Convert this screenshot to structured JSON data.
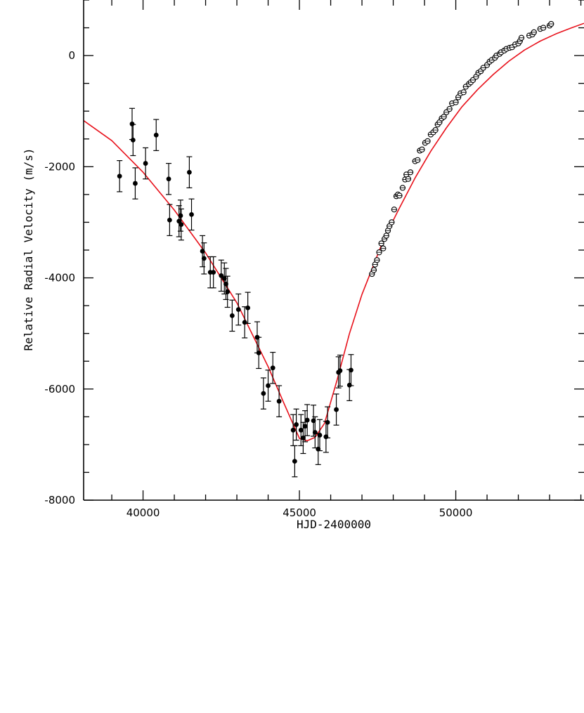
{
  "chart_data": {
    "type": "scatter",
    "title": "",
    "xlabel": "HJD-2400000",
    "ylabel": "Relative Radial Velocity (m/s)",
    "xlim": [
      38100,
      54100
    ],
    "ylim": [
      -8000,
      1000
    ],
    "x_major_ticks": [
      40000,
      45000,
      50000
    ],
    "x_tick_labels": [
      "40000",
      "45000",
      "50000"
    ],
    "x_minor_step": 1000,
    "y_major_ticks": [
      0,
      -2000,
      -4000,
      -6000,
      -8000
    ],
    "y_tick_labels": [
      "0",
      "-2000",
      "-4000",
      "-6000",
      "-8000"
    ],
    "y_minor_step": 500,
    "grid": false,
    "legend": "none",
    "colors": {
      "fit": "#e8111b",
      "points": "#000000",
      "axes": "#000000"
    },
    "series": [
      {
        "type": "scatter-errorbars",
        "marker": "filled-circle",
        "x": [
          39250,
          39650,
          39680,
          39750,
          40080,
          40420,
          40820,
          40850,
          41150,
          41200,
          41220,
          41480,
          41550,
          41900,
          41950,
          42150,
          42250,
          42500,
          42600,
          42650,
          42700,
          42850,
          43050,
          43250,
          43350,
          43650,
          43700,
          43850,
          44000,
          44150,
          44350,
          44800,
          44850,
          44900,
          45050,
          45120,
          45180,
          45250,
          45450,
          45500,
          45600,
          45650,
          45850,
          45900,
          46180,
          46250,
          46300,
          46600,
          46650
        ],
        "y": [
          -2170,
          -1230,
          -1520,
          -2300,
          -1940,
          -1430,
          -2220,
          -2960,
          -2980,
          -2880,
          -3040,
          -2100,
          -2860,
          -3520,
          -3650,
          -3900,
          -3900,
          -3960,
          -4010,
          -4110,
          -4250,
          -4680,
          -4570,
          -4800,
          -4540,
          -5070,
          -5350,
          -6080,
          -5940,
          -5620,
          -6220,
          -6740,
          -7300,
          -6640,
          -6740,
          -6880,
          -6670,
          -6560,
          -6570,
          -6780,
          -7080,
          -6830,
          -6860,
          -6600,
          -6370,
          -5700,
          -5670,
          -5930,
          -5660
        ],
        "err": [
          280,
          280,
          280,
          280,
          280,
          280,
          280,
          280,
          280,
          280,
          280,
          280,
          280,
          280,
          280,
          280,
          280,
          280,
          280,
          280,
          280,
          280,
          280,
          280,
          280,
          280,
          280,
          280,
          280,
          280,
          280,
          280,
          280,
          280,
          280,
          280,
          280,
          280,
          280,
          280,
          280,
          280,
          280,
          280,
          280,
          280,
          280,
          280,
          280
        ]
      },
      {
        "type": "scatter",
        "marker": "open-circle",
        "x": [
          47320,
          47380,
          47420,
          47480,
          47550,
          47620,
          47680,
          47720,
          47780,
          47830,
          47880,
          47950,
          48030,
          48100,
          48150,
          48200,
          48300,
          48380,
          48420,
          48480,
          48550,
          48700,
          48780,
          48850,
          48920,
          49020,
          49100,
          49200,
          49280,
          49350,
          49420,
          49480,
          49550,
          49620,
          49700,
          49800,
          49880,
          50000,
          50080,
          50150,
          50250,
          50320,
          50420,
          50480,
          50550,
          50650,
          50720,
          50800,
          50880,
          51000,
          51080,
          51150,
          51250,
          51300,
          51400,
          51450,
          51550,
          51620,
          51720,
          51800,
          51900,
          52000,
          52050,
          52100,
          52350,
          52450,
          52500,
          52700,
          52800,
          53000,
          53050
        ],
        "y": [
          -3930,
          -3860,
          -3760,
          -3680,
          -3540,
          -3380,
          -3470,
          -3300,
          -3240,
          -3150,
          -3070,
          -3000,
          -2770,
          -2530,
          -2500,
          -2520,
          -2380,
          -2230,
          -2140,
          -2220,
          -2100,
          -1900,
          -1880,
          -1710,
          -1690,
          -1570,
          -1540,
          -1420,
          -1380,
          -1340,
          -1240,
          -1200,
          -1130,
          -1100,
          -1020,
          -960,
          -860,
          -840,
          -750,
          -680,
          -660,
          -560,
          -510,
          -480,
          -440,
          -380,
          -310,
          -280,
          -220,
          -170,
          -110,
          -80,
          -40,
          0,
          30,
          60,
          90,
          120,
          140,
          150,
          200,
          220,
          260,
          320,
          360,
          380,
          420,
          480,
          500,
          540,
          570
        ]
      },
      {
        "type": "line",
        "name": "",
        "x": [
          38100,
          39000,
          40000,
          41000,
          42000,
          43000,
          44000,
          44500,
          45000,
          45250,
          45500,
          45800,
          46200,
          46600,
          47000,
          47300,
          47700,
          48200,
          48700,
          49200,
          49700,
          50200,
          50700,
          51200,
          51700,
          52200,
          52700,
          53200,
          53700,
          54100
        ],
        "y": [
          -1170,
          -1530,
          -2100,
          -2780,
          -3550,
          -4450,
          -5600,
          -6250,
          -6890,
          -6930,
          -6870,
          -6620,
          -5850,
          -5000,
          -4300,
          -3870,
          -3300,
          -2740,
          -2200,
          -1720,
          -1300,
          -920,
          -610,
          -340,
          -100,
          100,
          260,
          390,
          500,
          580
        ]
      }
    ]
  }
}
